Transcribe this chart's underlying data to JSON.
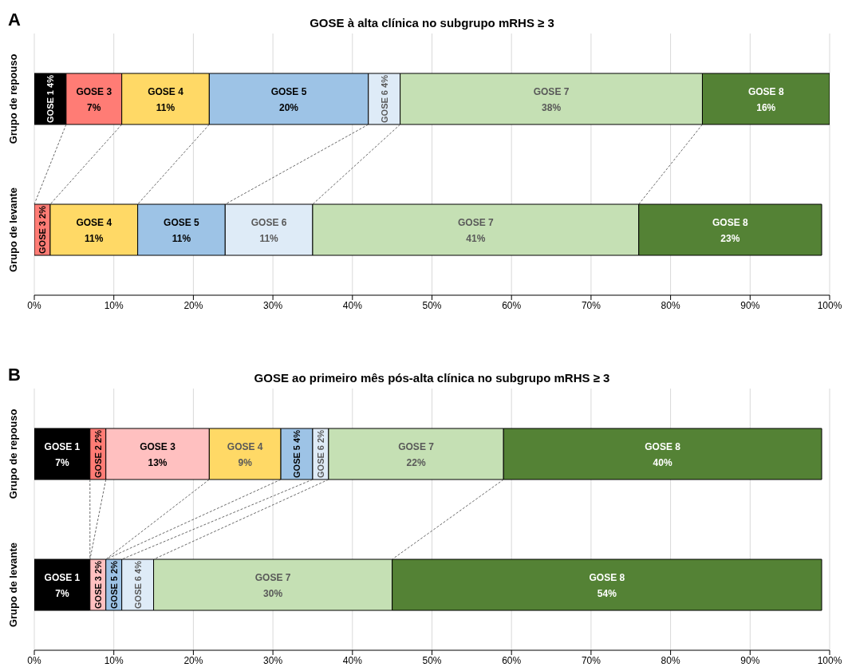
{
  "chart_data": [
    {
      "type": "bar",
      "title": "GOSE à alta clínica no subgrupo mRHS ≥ 3",
      "annotations": [
        "A"
      ],
      "orientation": "horizontal",
      "stacked": true,
      "grid": "x",
      "categories": [
        "Grupo de repouso",
        "Grupo de levante"
      ],
      "xlim": [
        0,
        100
      ],
      "xticks": [
        {
          "value": 0,
          "label": "0%"
        },
        {
          "value": 10,
          "label": "10%"
        },
        {
          "value": 20,
          "label": "20%"
        },
        {
          "value": 30,
          "label": "30%"
        },
        {
          "value": 40,
          "label": "40%"
        },
        {
          "value": 50,
          "label": "50%"
        },
        {
          "value": 60,
          "label": "60%"
        },
        {
          "value": 70,
          "label": "70%"
        },
        {
          "value": 80,
          "label": "80%"
        },
        {
          "value": 90,
          "label": "90%"
        },
        {
          "value": 100,
          "label": "100%"
        }
      ],
      "series": [
        {
          "name": "GOSE 1",
          "color": "#000000",
          "values": [
            4,
            null
          ],
          "value_labels": [
            "4%",
            null
          ]
        },
        {
          "name": "GOSE 3",
          "color": "#ff7c75",
          "values": [
            7,
            2
          ],
          "value_labels": [
            "7%",
            "2%"
          ]
        },
        {
          "name": "GOSE 4",
          "color": "#ffd966",
          "values": [
            11,
            11
          ],
          "value_labels": [
            "11%",
            "11%"
          ]
        },
        {
          "name": "GOSE 5",
          "color": "#9dc3e6",
          "values": [
            20,
            11
          ],
          "value_labels": [
            "20%",
            "11%"
          ]
        },
        {
          "name": "GOSE 6",
          "color": "#deebf7",
          "values": [
            4,
            11
          ],
          "value_labels": [
            "4%",
            "11%"
          ]
        },
        {
          "name": "GOSE 7",
          "color": "#c5e0b4",
          "values": [
            38,
            41
          ],
          "value_labels": [
            "38%",
            "41%"
          ]
        },
        {
          "name": "GOSE 8",
          "color": "#548235",
          "values": [
            16,
            23
          ],
          "value_labels": [
            "16%",
            "23%"
          ]
        }
      ]
    },
    {
      "type": "bar",
      "title": "GOSE ao primeiro mês pós-alta clínica no subgrupo mRHS ≥ 3",
      "annotations": [
        "B"
      ],
      "orientation": "horizontal",
      "stacked": true,
      "grid": "x",
      "categories": [
        "Grupo de repouso",
        "Grupo de levante"
      ],
      "xlim": [
        0,
        100
      ],
      "xticks": [
        {
          "value": 0,
          "label": "0%"
        },
        {
          "value": 10,
          "label": "10%"
        },
        {
          "value": 20,
          "label": "20%"
        },
        {
          "value": 30,
          "label": "30%"
        },
        {
          "value": 40,
          "label": "40%"
        },
        {
          "value": 50,
          "label": "50%"
        },
        {
          "value": 60,
          "label": "60%"
        },
        {
          "value": 70,
          "label": "70%"
        },
        {
          "value": 80,
          "label": "80%"
        },
        {
          "value": 90,
          "label": "90%"
        },
        {
          "value": 100,
          "label": "100%"
        }
      ],
      "series": [
        {
          "name": "GOSE 1",
          "color": "#000000",
          "values": [
            7,
            7
          ],
          "value_labels": [
            "7%",
            "7%"
          ]
        },
        {
          "name": "GOSE 2",
          "color": "#ff7c75",
          "values": [
            2,
            null
          ],
          "value_labels": [
            "2%",
            null
          ]
        },
        {
          "name": "GOSE 3",
          "color": "#ffc0c0",
          "values": [
            13,
            2
          ],
          "value_labels": [
            "13%",
            "2%"
          ]
        },
        {
          "name": "GOSE 4",
          "color": "#ffd966",
          "values": [
            9,
            null
          ],
          "value_labels": [
            "9%",
            null
          ]
        },
        {
          "name": "GOSE 5",
          "color": "#9dc3e6",
          "values": [
            4,
            2
          ],
          "value_labels": [
            "4%",
            "2%"
          ]
        },
        {
          "name": "GOSE 6",
          "color": "#deebf7",
          "values": [
            2,
            4
          ],
          "value_labels": [
            "2%",
            "4%"
          ]
        },
        {
          "name": "GOSE 7",
          "color": "#c5e0b4",
          "values": [
            22,
            30
          ],
          "value_labels": [
            "22%",
            "30%"
          ]
        },
        {
          "name": "GOSE 8",
          "color": "#548235",
          "values": [
            40,
            54
          ],
          "value_labels": [
            "40%",
            "54%"
          ]
        }
      ]
    }
  ]
}
